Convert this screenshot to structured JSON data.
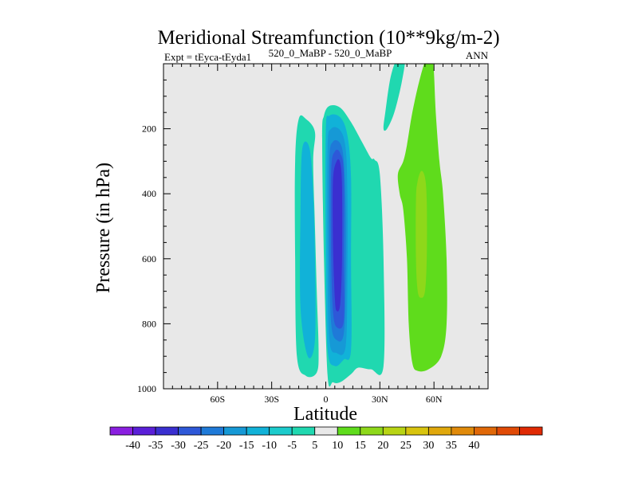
{
  "chart_data": {
    "type": "contour",
    "title": "Meridional Streamfunction (10**9kg/m-2)",
    "subtitle_left": "Expt = tEyca-tEyda1",
    "subtitle_center": "520_0_MaBP - 520_0_MaBP",
    "subtitle_right": "ANN",
    "xlabel": "Latitude",
    "ylabel": "Pressure (in hPa)",
    "xlim": [
      -90,
      90
    ],
    "ylim": [
      0,
      1000
    ],
    "x_ticks": [
      {
        "value": -60,
        "label": "60S"
      },
      {
        "value": -30,
        "label": "30S"
      },
      {
        "value": 0,
        "label": "0"
      },
      {
        "value": 30,
        "label": "30N"
      },
      {
        "value": 60,
        "label": "60N"
      }
    ],
    "y_ticks": [
      {
        "value": 200,
        "label": "200"
      },
      {
        "value": 400,
        "label": "400"
      },
      {
        "value": 600,
        "label": "600"
      },
      {
        "value": 800,
        "label": "800"
      },
      {
        "value": 1000,
        "label": "1000"
      }
    ],
    "colorbar": {
      "labels": [
        "-40",
        "-35",
        "-30",
        "-25",
        "-20",
        "-15",
        "-10",
        "-5",
        "5",
        "10",
        "15",
        "20",
        "25",
        "30",
        "35",
        "40"
      ],
      "colors": [
        "#8a1fe0",
        "#5a1fd8",
        "#3a2fd0",
        "#2e58d8",
        "#1f7ad8",
        "#1699d6",
        "#11b2d8",
        "#1ccbcc",
        "#20d8b0",
        "#e8e8e8",
        "#5fdc1c",
        "#8ed81a",
        "#b8d414",
        "#d8c40e",
        "#e0a80c",
        "#e08a0a",
        "#e06808",
        "#e04a06",
        "#e02a04"
      ]
    },
    "background_color": "#e8e8e8",
    "regions": [
      {
        "name": "neg-5-west-lobe",
        "color": "#20d8b0",
        "points": [
          [
            -15,
            170
          ],
          [
            -11,
            170
          ],
          [
            -6,
            210
          ],
          [
            -7,
            300
          ],
          [
            -6,
            500
          ],
          [
            -5,
            700
          ],
          [
            -4,
            880
          ],
          [
            -5,
            950
          ],
          [
            -11,
            960
          ],
          [
            -16,
            900
          ],
          [
            -17,
            600
          ],
          [
            -17,
            300
          ]
        ]
      },
      {
        "name": "neg-5-main",
        "color": "#20d8b0",
        "points": [
          [
            -2,
            230
          ],
          [
            -1,
            160
          ],
          [
            2,
            130
          ],
          [
            8,
            135
          ],
          [
            14,
            180
          ],
          [
            20,
            240
          ],
          [
            25,
            290
          ],
          [
            27,
            295
          ],
          [
            30,
            340
          ],
          [
            32,
            600
          ],
          [
            32,
            930
          ],
          [
            25,
            940
          ],
          [
            18,
            935
          ],
          [
            14,
            955
          ],
          [
            8,
            980
          ],
          [
            4,
            980
          ],
          [
            1,
            960
          ],
          [
            -1,
            600
          ]
        ]
      },
      {
        "name": "neg-5-north-strip",
        "color": "#20d8b0",
        "points": [
          [
            32,
            200
          ],
          [
            33,
            150
          ],
          [
            36,
            40
          ],
          [
            40,
            -20
          ],
          [
            44,
            -20
          ],
          [
            42,
            60
          ],
          [
            38,
            150
          ],
          [
            34,
            200
          ]
        ]
      },
      {
        "name": "neg-10-west",
        "color": "#11b2d8",
        "points": [
          [
            -13,
            260
          ],
          [
            -9,
            260
          ],
          [
            -7,
            400
          ],
          [
            -6,
            600
          ],
          [
            -6,
            850
          ],
          [
            -10,
            900
          ],
          [
            -14,
            750
          ],
          [
            -14,
            450
          ]
        ]
      },
      {
        "name": "neg-10-main",
        "color": "#11b2d8",
        "points": [
          [
            0,
            210
          ],
          [
            2,
            160
          ],
          [
            8,
            165
          ],
          [
            12,
            220
          ],
          [
            14,
            350
          ],
          [
            14,
            600
          ],
          [
            14,
            880
          ],
          [
            10,
            910
          ],
          [
            5,
            930
          ],
          [
            1,
            880
          ],
          [
            0,
            600
          ]
        ]
      },
      {
        "name": "neg-15",
        "color": "#1699d6",
        "points": [
          [
            1,
            260
          ],
          [
            3,
            200
          ],
          [
            8,
            205
          ],
          [
            11,
            260
          ],
          [
            12,
            400
          ],
          [
            12,
            650
          ],
          [
            11,
            870
          ],
          [
            6,
            890
          ],
          [
            2,
            850
          ],
          [
            1,
            600
          ]
        ]
      },
      {
        "name": "neg-20",
        "color": "#1f7ad8",
        "points": [
          [
            2,
            300
          ],
          [
            4,
            240
          ],
          [
            8,
            245
          ],
          [
            10,
            300
          ],
          [
            11,
            450
          ],
          [
            11,
            650
          ],
          [
            10,
            830
          ],
          [
            6,
            850
          ],
          [
            3,
            800
          ],
          [
            2,
            600
          ]
        ]
      },
      {
        "name": "neg-25",
        "color": "#2e58d8",
        "points": [
          [
            3,
            330
          ],
          [
            5,
            270
          ],
          [
            8,
            275
          ],
          [
            10,
            340
          ],
          [
            10,
            600
          ],
          [
            10,
            790
          ],
          [
            6,
            810
          ],
          [
            4,
            760
          ],
          [
            3,
            600
          ]
        ]
      },
      {
        "name": "neg-30",
        "color": "#3a2fd0",
        "points": [
          [
            4,
            360
          ],
          [
            6,
            300
          ],
          [
            8,
            305
          ],
          [
            9,
            380
          ],
          [
            9,
            600
          ],
          [
            8,
            740
          ],
          [
            6,
            760
          ],
          [
            5,
            720
          ],
          [
            4,
            550
          ]
        ]
      },
      {
        "name": "pos-5-north",
        "color": "#5fdc1c",
        "points": [
          [
            40,
            340
          ],
          [
            43,
            300
          ],
          [
            45,
            250
          ],
          [
            48,
            150
          ],
          [
            52,
            50
          ],
          [
            56,
            -20
          ],
          [
            59,
            -20
          ],
          [
            60,
            30
          ],
          [
            61,
            150
          ],
          [
            63,
            300
          ],
          [
            65,
            400
          ],
          [
            67,
            600
          ],
          [
            67,
            800
          ],
          [
            64,
            900
          ],
          [
            57,
            940
          ],
          [
            51,
            945
          ],
          [
            48,
            920
          ],
          [
            46,
            800
          ],
          [
            45,
            600
          ],
          [
            43,
            450
          ],
          [
            41,
            400
          ]
        ]
      },
      {
        "name": "pos-10-north",
        "color": "#8ed81a",
        "points": [
          [
            50,
            420
          ],
          [
            51,
            360
          ],
          [
            53,
            330
          ],
          [
            55,
            350
          ],
          [
            56,
            420
          ],
          [
            56,
            600
          ],
          [
            55,
            700
          ],
          [
            53,
            720
          ],
          [
            51,
            700
          ],
          [
            50,
            600
          ]
        ]
      }
    ]
  }
}
